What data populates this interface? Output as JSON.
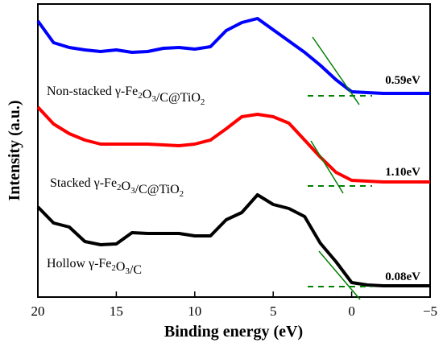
{
  "chart_data": {
    "type": "line",
    "xlabel": "Binding energy (eV)",
    "ylabel": "Intensity (a.u.)",
    "xlim": [
      20,
      -5
    ],
    "x_reversed": true,
    "xticks": [
      20,
      15,
      10,
      5,
      0,
      -5
    ],
    "xtick_labels": [
      "20",
      "15",
      "10",
      "5",
      "0",
      "−5"
    ],
    "grid": false,
    "legend": "none",
    "series": [
      {
        "label_parts": [
          "Non-stacked γ-Fe",
          "2",
          "O",
          "3",
          "/C@TiO",
          "2"
        ],
        "color": "#0000ff",
        "value_label": "0.59eV",
        "points": [
          [
            20,
            0.91
          ],
          [
            19,
            0.64
          ],
          [
            18,
            0.58
          ],
          [
            17,
            0.55
          ],
          [
            16,
            0.53
          ],
          [
            15,
            0.55
          ],
          [
            14,
            0.52
          ],
          [
            13,
            0.53
          ],
          [
            12,
            0.57
          ],
          [
            11,
            0.58
          ],
          [
            10,
            0.56
          ],
          [
            9,
            0.59
          ],
          [
            8,
            0.79
          ],
          [
            7,
            0.89
          ],
          [
            6,
            0.94
          ],
          [
            5,
            0.8
          ],
          [
            4,
            0.66
          ],
          [
            3,
            0.52
          ],
          [
            2,
            0.36
          ],
          [
            1,
            0.18
          ],
          [
            0,
            0.03
          ],
          [
            -1,
            0.02
          ],
          [
            -2,
            0.01
          ],
          [
            -3,
            0.01
          ],
          [
            -4,
            0.01
          ],
          [
            -5,
            0.01
          ]
        ]
      },
      {
        "label_parts": [
          "Stacked γ-Fe",
          "2",
          "O",
          "3",
          "/C@TiO",
          "2"
        ],
        "color": "#ff0000",
        "value_label": "1.10eV",
        "points": [
          [
            20,
            0.97
          ],
          [
            19,
            0.76
          ],
          [
            18,
            0.64
          ],
          [
            17,
            0.56
          ],
          [
            16,
            0.51
          ],
          [
            15,
            0.51
          ],
          [
            14,
            0.51
          ],
          [
            13,
            0.51
          ],
          [
            12,
            0.5
          ],
          [
            11,
            0.49
          ],
          [
            10,
            0.51
          ],
          [
            9,
            0.56
          ],
          [
            8,
            0.7
          ],
          [
            7,
            0.85
          ],
          [
            6,
            0.88
          ],
          [
            5,
            0.85
          ],
          [
            4,
            0.77
          ],
          [
            3,
            0.56
          ],
          [
            2,
            0.35
          ],
          [
            1,
            0.16
          ],
          [
            0,
            0.06
          ],
          [
            -1,
            0.05
          ],
          [
            -2,
            0.04
          ],
          [
            -3,
            0.04
          ],
          [
            -4,
            0.04
          ],
          [
            -5,
            0.04
          ]
        ]
      },
      {
        "label_parts": [
          "Hollow γ-Fe",
          "2",
          "O",
          "3",
          "/C"
        ],
        "color": "#000000",
        "value_label": "0.08eV",
        "points": [
          [
            20,
            1.0
          ],
          [
            19,
            0.8
          ],
          [
            18,
            0.75
          ],
          [
            17,
            0.57
          ],
          [
            16,
            0.53
          ],
          [
            15,
            0.54
          ],
          [
            14,
            0.68
          ],
          [
            13,
            0.67
          ],
          [
            12,
            0.67
          ],
          [
            11,
            0.67
          ],
          [
            10,
            0.64
          ],
          [
            9,
            0.64
          ],
          [
            8,
            0.84
          ],
          [
            7,
            0.93
          ],
          [
            6,
            1.15
          ],
          [
            5,
            1.03
          ],
          [
            4,
            0.98
          ],
          [
            3,
            0.88
          ],
          [
            2,
            0.55
          ],
          [
            1,
            0.32
          ],
          [
            0,
            0.06
          ],
          [
            -1,
            0.03
          ],
          [
            -2,
            0.02
          ],
          [
            -3,
            0.02
          ],
          [
            -4,
            0.02
          ],
          [
            -5,
            0.02
          ]
        ]
      }
    ],
    "annotations": {
      "edge_tangent_color": "#008000",
      "baseline_dash_color": "#008000"
    }
  }
}
